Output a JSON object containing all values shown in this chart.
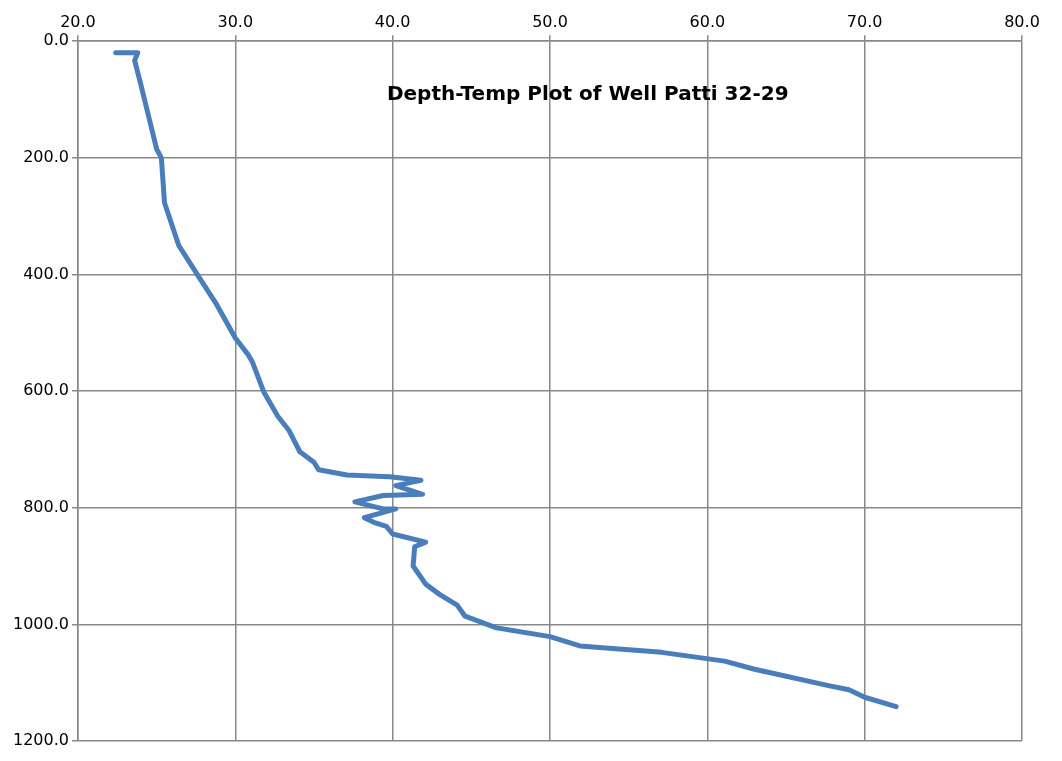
{
  "chart_data": {
    "type": "line",
    "title": "Depth-Temp Plot of Well Patti 32-29",
    "series": [
      {
        "color": "#4a7ebb",
        "x": [
          22.4,
          23.8,
          23.6,
          24.0,
          24.5,
          25.0,
          25.3,
          25.5,
          26.4,
          27.7,
          28.8,
          30.0,
          30.8,
          31.1,
          31.8,
          32.7,
          33.4,
          34.1,
          35.0,
          35.3,
          37.1,
          39.8,
          41.8,
          40.2,
          41.9,
          39.4,
          37.6,
          39.4,
          40.2,
          38.2,
          38.9,
          39.6,
          40.0,
          42.1,
          41.4,
          41.3,
          42.1,
          43.0,
          44.1,
          44.6,
          46.6,
          50.0,
          51.9,
          57.1,
          61.1,
          63.0,
          67.7,
          69.0,
          70.0,
          72.0
        ],
        "values": [
          20,
          20,
          33,
          75,
          130,
          185,
          200,
          277,
          350,
          405,
          451,
          509,
          537,
          551,
          601,
          643,
          667,
          704,
          722,
          735,
          744,
          747,
          753,
          762,
          777,
          779,
          790,
          802,
          802,
          817,
          826,
          832,
          845,
          859,
          867,
          900,
          931,
          949,
          967,
          986,
          1006,
          1021,
          1037,
          1048,
          1063,
          1077,
          1105,
          1112,
          1125,
          1141
        ]
      }
    ],
    "xlim": [
      20,
      80
    ],
    "xticks": [
      {
        "value": 20,
        "label": "20.0"
      },
      {
        "value": 30,
        "label": "30.0"
      },
      {
        "value": 40,
        "label": "40.0"
      },
      {
        "value": 50,
        "label": "50.0"
      },
      {
        "value": 60,
        "label": "60.0"
      },
      {
        "value": 70,
        "label": "70.0"
      },
      {
        "value": 80,
        "label": "80.0"
      }
    ],
    "ylim": [
      1200,
      0
    ],
    "yticks": [
      {
        "value": 0,
        "label": "0.0"
      },
      {
        "value": 200,
        "label": "200.0"
      },
      {
        "value": 400,
        "label": "400.0"
      },
      {
        "value": 600,
        "label": "600.0"
      },
      {
        "value": 800,
        "label": "800.0"
      },
      {
        "value": 1000,
        "label": "1000.0"
      },
      {
        "value": 1200,
        "label": "1200.0"
      }
    ],
    "grid": true,
    "marker": "none",
    "line_style": "solid"
  }
}
